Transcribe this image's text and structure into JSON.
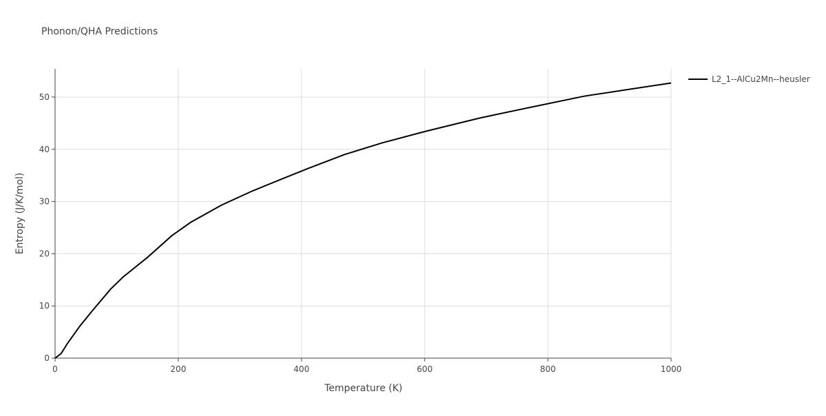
{
  "chart_data": {
    "type": "line",
    "title": "Phonon/QHA Predictions",
    "x_label": "Temperature (K)",
    "y_label": "Entropy (J/K/mol)",
    "x": [
      0,
      10,
      20,
      40,
      60,
      90,
      110,
      150,
      190,
      220,
      270,
      320,
      370,
      410,
      470,
      530,
      600,
      690,
      770,
      860,
      1000
    ],
    "series": [
      {
        "name": "L2_1--AlCu2Mn--heusler",
        "color": "#000000",
        "values": [
          0,
          0.9,
          2.8,
          6.1,
          9,
          13.2,
          15.5,
          19.3,
          23.5,
          26,
          29.3,
          32,
          34.4,
          36.3,
          39,
          41.2,
          43.4,
          46,
          48,
          50.2,
          52.7
        ]
      }
    ],
    "xlim": [
      0,
      1000
    ],
    "xticks": [
      0,
      200,
      400,
      600,
      800,
      1000
    ],
    "ylim": [
      0,
      55.4
    ],
    "yticks": [
      0,
      10,
      20,
      30,
      40,
      50
    ],
    "grid": true,
    "legend": "right"
  }
}
